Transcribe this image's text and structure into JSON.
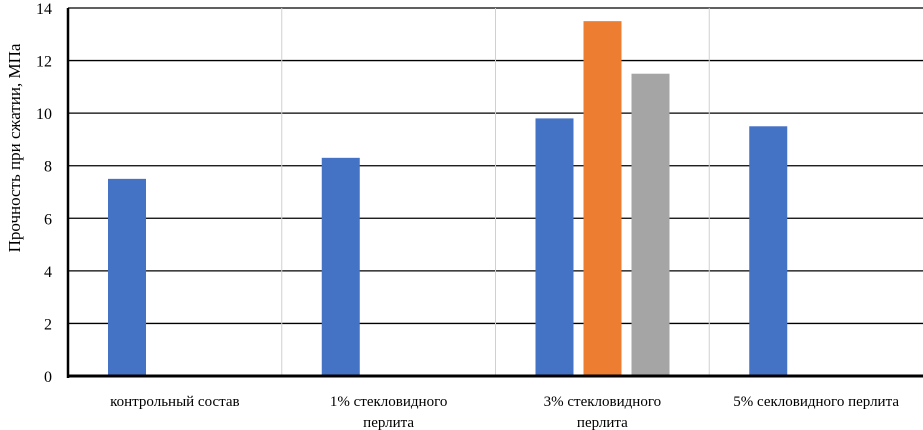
{
  "chart_data": {
    "type": "bar",
    "title": "",
    "xlabel": "",
    "ylabel": "Прочность при сжатии, МПа",
    "ylim": [
      0,
      14
    ],
    "yticks": [
      0,
      2,
      4,
      6,
      8,
      10,
      12,
      14
    ],
    "grid": true,
    "legend": "none",
    "categories": [
      [
        "контрольный состав"
      ],
      [
        "1% стекловидного",
        "перлита"
      ],
      [
        "3% стекловидного",
        "перлита"
      ],
      [
        "5% секловидного перлита"
      ]
    ],
    "series": [
      {
        "color": "#4472C4",
        "values": [
          7.5,
          8.3,
          9.8,
          9.5
        ]
      },
      {
        "color": "#ED7D31",
        "values": [
          null,
          null,
          13.5,
          null
        ]
      },
      {
        "color": "#A5A5A5",
        "values": [
          null,
          null,
          11.5,
          null
        ]
      }
    ]
  }
}
